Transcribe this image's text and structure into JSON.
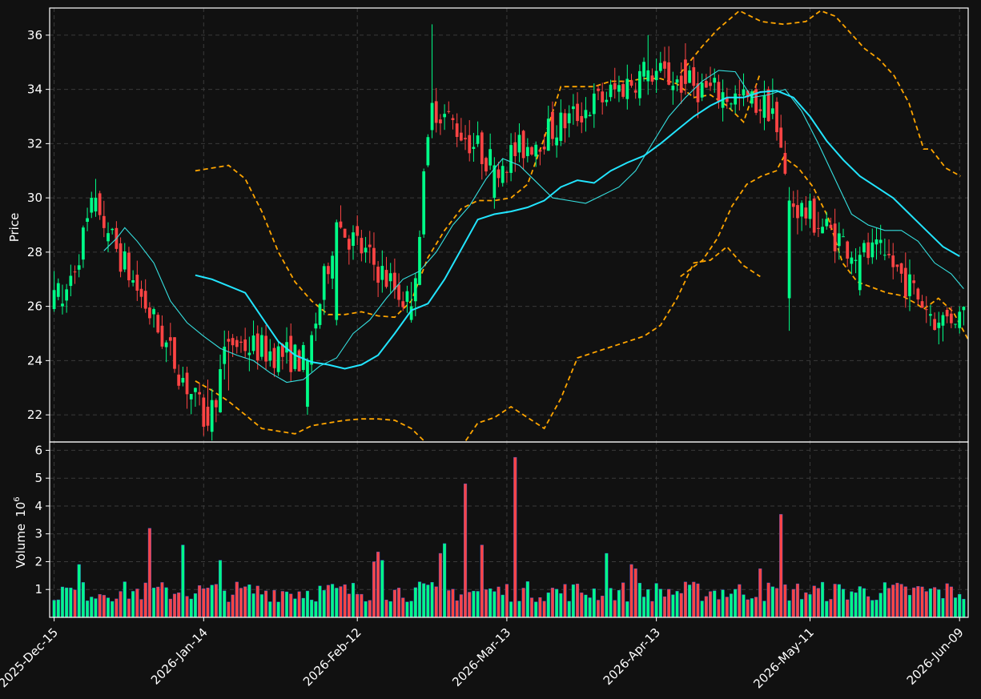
{
  "chart_data": {
    "type": "candlestick",
    "start_date": "2025-12-15",
    "x_tick_labels": [
      "2025-Dec-15",
      "2026-Jan-14",
      "2026-Feb-12",
      "2026-Mar-13",
      "2026-Apr-13",
      "2026-May-11",
      "2026-Jun-09"
    ],
    "price_axis": {
      "ylabel": "Price",
      "ylim": [
        21.0,
        37.0
      ],
      "ticks": [
        22,
        24,
        26,
        28,
        30,
        32,
        34,
        36
      ]
    },
    "volume_axis": {
      "ylabel": "Volume",
      "exponent_label": "10",
      "exponent": "6",
      "ylim": [
        0.0,
        6.3
      ],
      "ticks": [
        1,
        2,
        3,
        4,
        5,
        6
      ]
    },
    "grid": true,
    "colors": {
      "background": "#111111",
      "up": "#00ff88",
      "down": "#ff4444",
      "ma_short": "#35e0e0",
      "ma_long": "#22e5ff",
      "bollinger": "#ffa500"
    },
    "key_ohlc": [
      {
        "day": 0,
        "open": 25.9,
        "high": 27.3,
        "low": 25.8,
        "close": 26.6
      },
      {
        "day": 2,
        "open": 26.0,
        "high": 26.8,
        "low": 25.7,
        "close": 26.1
      },
      {
        "day": 10,
        "open": 29.5,
        "high": 30.7,
        "low": 29.3,
        "close": 30.0
      },
      {
        "day": 13,
        "open": 28.4,
        "high": 29.1,
        "low": 28.0,
        "close": 28.7
      },
      {
        "day": 37,
        "open": 22.3,
        "high": 23.3,
        "low": 21.4,
        "close": 21.6
      },
      {
        "day": 42,
        "open": 24.8,
        "high": 25.1,
        "low": 22.9,
        "close": 24.7
      },
      {
        "day": 61,
        "open": 22.3,
        "high": 24.1,
        "low": 22.0,
        "close": 24.0
      },
      {
        "day": 68,
        "open": 25.5,
        "high": 29.2,
        "low": 25.3,
        "close": 29.1
      },
      {
        "day": 86,
        "open": 25.5,
        "high": 26.9,
        "low": 25.4,
        "close": 26.0
      },
      {
        "day": 91,
        "open": 32.5,
        "high": 36.4,
        "low": 32.2,
        "close": 33.5
      },
      {
        "day": 106,
        "open": 30.0,
        "high": 31.5,
        "low": 29.6,
        "close": 31.2
      },
      {
        "day": 143,
        "open": 34.3,
        "high": 36.0,
        "low": 33.8,
        "close": 34.7
      },
      {
        "day": 152,
        "open": 35.1,
        "high": 35.7,
        "low": 33.8,
        "close": 34.2
      },
      {
        "day": 173,
        "open": 33.1,
        "high": 34.4,
        "low": 32.9,
        "close": 33.3
      },
      {
        "day": 177,
        "open": 26.3,
        "high": 30.4,
        "low": 25.1,
        "close": 29.9
      },
      {
        "day": 194,
        "open": 26.6,
        "high": 28.2,
        "low": 26.4,
        "close": 27.9
      },
      {
        "day": 200,
        "open": 27.9,
        "high": 28.5,
        "low": 27.7,
        "close": 27.9
      },
      {
        "day": 213,
        "open": 25.2,
        "high": 25.8,
        "low": 24.6,
        "close": 25.4
      },
      {
        "day": 218,
        "open": 25.2,
        "high": 26.0,
        "low": 25.0,
        "close": 25.8
      }
    ],
    "ma_short": [
      [
        12,
        28.05
      ],
      [
        15,
        28.5
      ],
      [
        17,
        28.9
      ],
      [
        20,
        28.4
      ],
      [
        24,
        27.6
      ],
      [
        28,
        26.2
      ],
      [
        32,
        25.4
      ],
      [
        36,
        24.9
      ],
      [
        40,
        24.45
      ],
      [
        44,
        24.2
      ],
      [
        48,
        24.0
      ],
      [
        52,
        23.55
      ],
      [
        56,
        23.2
      ],
      [
        60,
        23.3
      ],
      [
        64,
        23.8
      ],
      [
        68,
        24.1
      ],
      [
        72,
        25.0
      ],
      [
        76,
        25.5
      ],
      [
        80,
        26.3
      ],
      [
        84,
        27.0
      ],
      [
        88,
        27.3
      ],
      [
        92,
        28.0
      ],
      [
        96,
        29.0
      ],
      [
        100,
        29.7
      ],
      [
        104,
        30.7
      ],
      [
        108,
        31.45
      ],
      [
        112,
        31.2
      ],
      [
        116,
        30.6
      ],
      [
        120,
        30.0
      ],
      [
        124,
        29.9
      ],
      [
        128,
        29.8
      ],
      [
        132,
        30.1
      ],
      [
        136,
        30.4
      ],
      [
        140,
        31.0
      ],
      [
        144,
        32.0
      ],
      [
        148,
        33.0
      ],
      [
        152,
        33.7
      ],
      [
        156,
        34.3
      ],
      [
        160,
        34.7
      ],
      [
        164,
        34.65
      ],
      [
        168,
        33.7
      ],
      [
        172,
        33.8
      ],
      [
        176,
        34.0
      ],
      [
        180,
        33.2
      ],
      [
        184,
        32.0
      ],
      [
        188,
        30.7
      ],
      [
        192,
        29.4
      ],
      [
        196,
        29.0
      ],
      [
        200,
        28.8
      ],
      [
        204,
        28.8
      ],
      [
        208,
        28.4
      ],
      [
        212,
        27.6
      ],
      [
        216,
        27.2
      ],
      [
        219,
        26.65
      ]
    ],
    "ma_long": [
      [
        34,
        27.15
      ],
      [
        38,
        27.0
      ],
      [
        42,
        26.75
      ],
      [
        46,
        26.5
      ],
      [
        50,
        25.6
      ],
      [
        54,
        24.7
      ],
      [
        58,
        24.2
      ],
      [
        62,
        23.95
      ],
      [
        66,
        23.85
      ],
      [
        70,
        23.7
      ],
      [
        74,
        23.85
      ],
      [
        78,
        24.2
      ],
      [
        82,
        25.0
      ],
      [
        86,
        25.85
      ],
      [
        90,
        26.1
      ],
      [
        94,
        27.0
      ],
      [
        98,
        28.1
      ],
      [
        102,
        29.2
      ],
      [
        106,
        29.4
      ],
      [
        110,
        29.5
      ],
      [
        114,
        29.65
      ],
      [
        118,
        29.9
      ],
      [
        122,
        30.4
      ],
      [
        126,
        30.65
      ],
      [
        130,
        30.55
      ],
      [
        134,
        31.0
      ],
      [
        138,
        31.3
      ],
      [
        142,
        31.55
      ],
      [
        146,
        32.0
      ],
      [
        150,
        32.5
      ],
      [
        154,
        33.0
      ],
      [
        158,
        33.4
      ],
      [
        162,
        33.7
      ],
      [
        166,
        33.7
      ],
      [
        170,
        33.9
      ],
      [
        174,
        33.95
      ],
      [
        178,
        33.7
      ],
      [
        182,
        33.0
      ],
      [
        186,
        32.1
      ],
      [
        190,
        31.4
      ],
      [
        194,
        30.8
      ],
      [
        198,
        30.4
      ],
      [
        202,
        30.0
      ],
      [
        206,
        29.4
      ],
      [
        210,
        28.8
      ],
      [
        214,
        28.2
      ],
      [
        218,
        27.85
      ]
    ],
    "bb_upper": [
      [
        34,
        31.0
      ],
      [
        38,
        31.1
      ],
      [
        42,
        31.2
      ],
      [
        46,
        30.7
      ],
      [
        50,
        29.5
      ],
      [
        54,
        28.0
      ],
      [
        58,
        26.9
      ],
      [
        62,
        26.2
      ],
      [
        66,
        25.7
      ],
      [
        70,
        25.7
      ],
      [
        74,
        25.8
      ],
      [
        78,
        25.65
      ],
      [
        82,
        25.6
      ],
      [
        86,
        26.2
      ],
      [
        90,
        27.8
      ],
      [
        94,
        28.8
      ],
      [
        98,
        29.6
      ],
      [
        102,
        29.9
      ],
      [
        106,
        29.9
      ],
      [
        110,
        30.0
      ],
      [
        114,
        30.5
      ],
      [
        118,
        32.2
      ],
      [
        122,
        34.1
      ],
      [
        126,
        34.1
      ],
      [
        130,
        34.1
      ],
      [
        134,
        34.3
      ],
      [
        138,
        34.3
      ],
      [
        142,
        34.4
      ],
      [
        146,
        34.4
      ],
      [
        150,
        34.2
      ],
      [
        154,
        33.7
      ],
      [
        158,
        33.8
      ],
      [
        162,
        33.4
      ],
      [
        166,
        32.8
      ],
      [
        170,
        34.6
      ],
      [
        174,
        35.4
      ],
      [
        178,
        36.1
      ],
      [
        182,
        36.8
      ],
      [
        186,
        37.0
      ],
      [
        190,
        36.7
      ],
      [
        194,
        36.5
      ],
      [
        198,
        36.5
      ],
      [
        202,
        36.4
      ],
      [
        206,
        36.5
      ],
      [
        210,
        36.6
      ],
      [
        214,
        36.8
      ],
      [
        218,
        36.9
      ]
    ],
    "bb_lower": [
      [
        34,
        23.25
      ],
      [
        38,
        22.9
      ],
      [
        42,
        22.5
      ],
      [
        46,
        22.0
      ],
      [
        50,
        21.5
      ],
      [
        54,
        21.4
      ],
      [
        58,
        21.3
      ],
      [
        62,
        21.6
      ],
      [
        66,
        21.7
      ],
      [
        70,
        21.8
      ],
      [
        74,
        21.85
      ],
      [
        78,
        21.85
      ],
      [
        82,
        21.8
      ],
      [
        86,
        21.5
      ],
      [
        90,
        20.9
      ],
      [
        94,
        20.3
      ],
      [
        98,
        20.8
      ],
      [
        102,
        21.7
      ],
      [
        106,
        21.9
      ],
      [
        110,
        22.3
      ],
      [
        114,
        21.9
      ],
      [
        118,
        21.5
      ],
      [
        122,
        22.6
      ],
      [
        126,
        24.1
      ],
      [
        130,
        24.3
      ],
      [
        134,
        24.5
      ],
      [
        138,
        24.7
      ],
      [
        142,
        24.9
      ],
      [
        146,
        25.3
      ],
      [
        150,
        26.3
      ],
      [
        154,
        27.6
      ],
      [
        158,
        27.7
      ],
      [
        162,
        28.2
      ],
      [
        166,
        27.5
      ],
      [
        170,
        27.1
      ],
      [
        174,
        27.3
      ],
      [
        178,
        27.8
      ],
      [
        182,
        28.6
      ],
      [
        186,
        29.8
      ],
      [
        190,
        30.4
      ],
      [
        194,
        30.8
      ],
      [
        198,
        31.0
      ],
      [
        202,
        31.5
      ],
      [
        206,
        31.2
      ],
      [
        210,
        30.6
      ],
      [
        214,
        29.5
      ],
      [
        218,
        28.2
      ]
    ],
    "bb_upper_tail": [
      [
        170,
        34.6
      ],
      [
        176,
        35.6
      ],
      [
        180,
        36.2
      ],
      [
        186,
        36.9
      ],
      [
        192,
        36.5
      ],
      [
        198,
        36.4
      ],
      [
        204,
        36.5
      ],
      [
        208,
        36.9
      ],
      [
        212,
        36.7
      ],
      [
        216,
        36.1
      ],
      [
        220,
        35.5
      ],
      [
        224,
        35.1
      ],
      [
        228,
        34.5
      ],
      [
        232,
        33.5
      ],
      [
        236,
        31.8
      ],
      [
        238,
        31.8
      ],
      [
        242,
        31.1
      ],
      [
        246,
        30.8
      ]
    ],
    "bb_lower_tail": [
      [
        170,
        27.1
      ],
      [
        176,
        27.7
      ],
      [
        180,
        28.5
      ],
      [
        184,
        29.7
      ],
      [
        188,
        30.5
      ],
      [
        192,
        30.8
      ],
      [
        196,
        31.0
      ],
      [
        198,
        31.5
      ],
      [
        202,
        31.1
      ],
      [
        206,
        30.4
      ],
      [
        210,
        29.3
      ],
      [
        214,
        27.6
      ],
      [
        218,
        26.9
      ],
      [
        222,
        26.7
      ],
      [
        226,
        26.5
      ],
      [
        230,
        26.4
      ],
      [
        234,
        26.1
      ],
      [
        236,
        25.9
      ],
      [
        240,
        26.3
      ],
      [
        244,
        25.8
      ],
      [
        248,
        24.8
      ]
    ]
  }
}
